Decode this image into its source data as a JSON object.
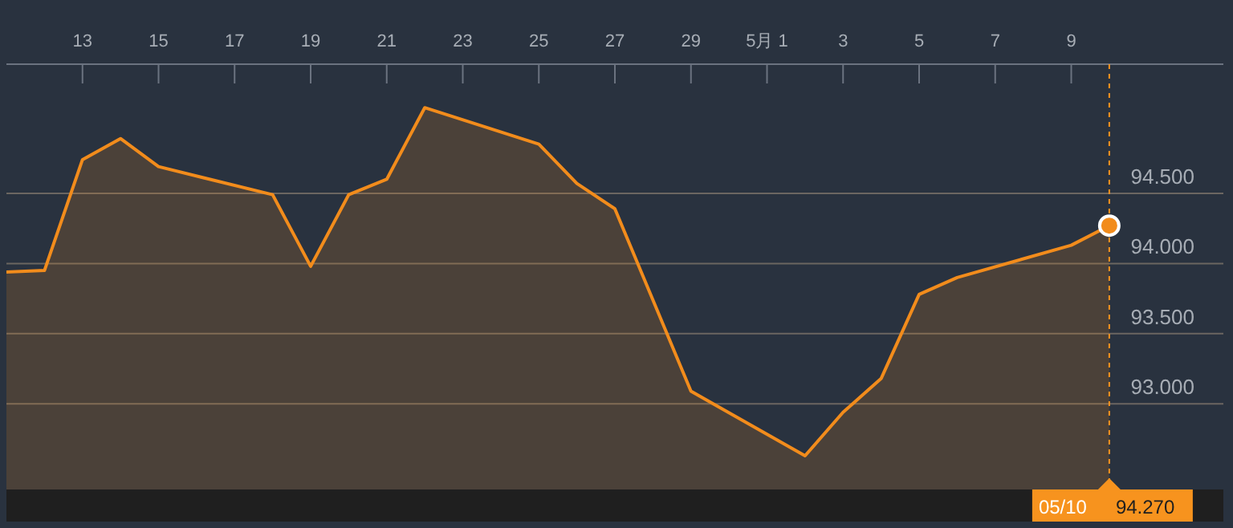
{
  "chart_data": {
    "type": "area",
    "x": [
      "--04-11",
      "--04-12",
      "--04-13",
      "--04-14",
      "--04-15",
      "--04-18",
      "--04-19",
      "--04-20",
      "--04-21",
      "--04-22",
      "--04-25",
      "--04-26",
      "--04-27",
      "--04-29",
      "--05-02",
      "--05-03",
      "--05-04",
      "--05-05",
      "--05-06",
      "--05-09",
      "--05-10"
    ],
    "series": [
      {
        "color": "#f28c1c",
        "values": [
          93.94,
          93.95,
          94.74,
          94.89,
          94.69,
          94.49,
          93.98,
          94.49,
          94.6,
          95.11,
          94.85,
          94.57,
          94.39,
          93.09,
          92.63,
          92.94,
          93.18,
          93.78,
          93.9,
          94.13,
          94.27
        ]
      }
    ],
    "xlim": [
      "--04-11",
      "--05-13"
    ],
    "xticks": [
      {
        "value": "--04-13",
        "label": "13"
      },
      {
        "value": "--04-15",
        "label": "15"
      },
      {
        "value": "--04-17",
        "label": "17"
      },
      {
        "value": "--04-19",
        "label": "19"
      },
      {
        "value": "--04-21",
        "label": "21"
      },
      {
        "value": "--04-23",
        "label": "23"
      },
      {
        "value": "--04-25",
        "label": "25"
      },
      {
        "value": "--04-27",
        "label": "27"
      },
      {
        "value": "--04-29",
        "label": "29"
      },
      {
        "value": "--05-01",
        "label": "5月 1"
      },
      {
        "value": "--05-03",
        "label": "3"
      },
      {
        "value": "--05-05",
        "label": "5"
      },
      {
        "value": "--05-07",
        "label": "7"
      },
      {
        "value": "--05-09",
        "label": "9"
      }
    ],
    "ylim": [
      92.39,
      95.42
    ],
    "yticks": [
      {
        "value": 93,
        "label": "93.000"
      },
      {
        "value": 93.5,
        "label": "93.500"
      },
      {
        "value": 94,
        "label": "94.000"
      },
      {
        "value": 94.5,
        "label": "94.500"
      }
    ],
    "grid": "y",
    "ref_lines": [
      {
        "axis": "x",
        "value": "--05-10",
        "label": "05/10",
        "color": "#f7931e",
        "line_style": "dashed"
      }
    ],
    "annotations": [
      "94.270"
    ]
  }
}
